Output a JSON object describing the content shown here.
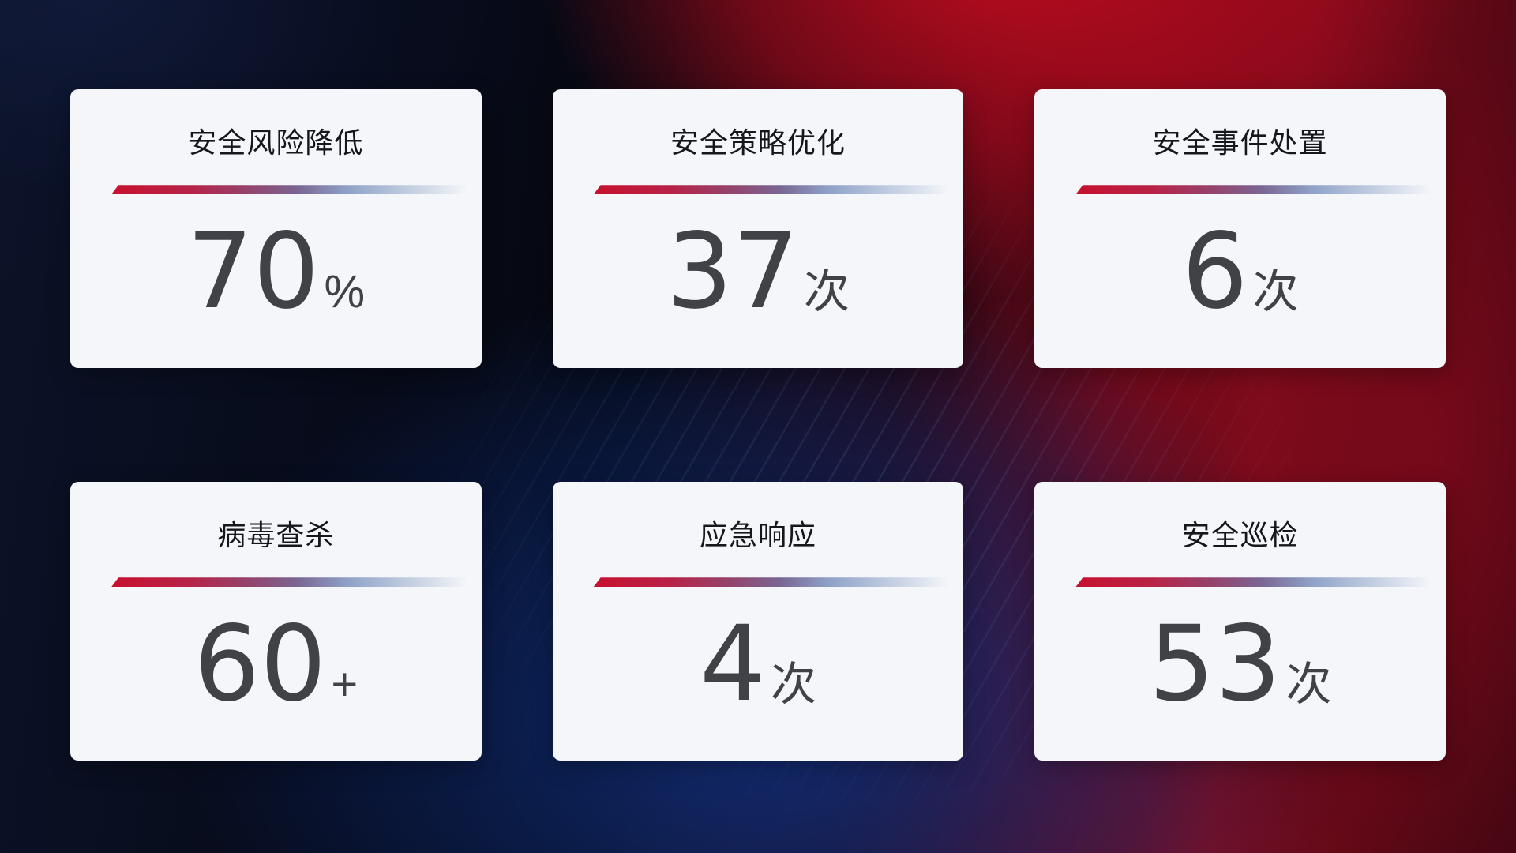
{
  "cards": [
    {
      "title": "安全风险降低",
      "value": "70",
      "unit": "%"
    },
    {
      "title": "安全策略优化",
      "value": "37",
      "unit": "次"
    },
    {
      "title": "安全事件处置",
      "value": "6",
      "unit": "次"
    },
    {
      "title": "病毒查杀",
      "value": "60",
      "unit": "+"
    },
    {
      "title": "应急响应",
      "value": "4",
      "unit": "次"
    },
    {
      "title": "安全巡检",
      "value": "53",
      "unit": "次"
    }
  ],
  "theme": {
    "card_background": "#f5f6f9",
    "title_color": "#16171b",
    "value_color": "#404247",
    "divider_gradient_start": "#c8102e",
    "divider_gradient_mid": "#7a6694",
    "divider_gradient_end": "#b9c6dd",
    "background_navy": "#0c1328",
    "background_blue_glow": "#10307e",
    "background_red_bright": "#c80d20",
    "background_red_dark": "#3c0611"
  }
}
